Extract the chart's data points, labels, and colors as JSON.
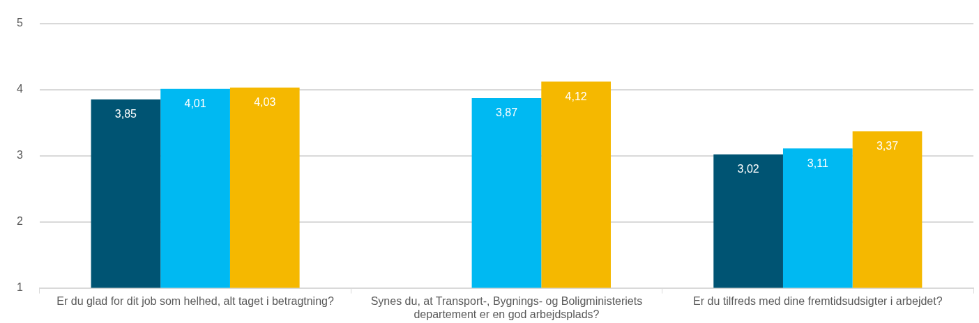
{
  "chart_data": {
    "type": "bar",
    "categories": [
      "Er du glad for dit job som helhed, alt taget i betragtning?",
      "Synes du, at Transport-, Bygnings- og Boligministeriets departement er en god arbejdsplads?",
      "Er du tilfreds med dine fremtidsudsigter i arbejdet?"
    ],
    "series": [
      {
        "color": "#005473",
        "values": [
          3.85,
          null,
          3.02
        ],
        "value_labels": [
          "3,85",
          null,
          "3,02"
        ]
      },
      {
        "color": "#00b9f2",
        "values": [
          4.01,
          3.87,
          3.11
        ],
        "value_labels": [
          "4,01",
          "3,87",
          "3,11"
        ]
      },
      {
        "color": "#f5b800",
        "values": [
          4.03,
          4.12,
          3.37
        ],
        "value_labels": [
          "4,03",
          "4,12",
          "3,37"
        ]
      }
    ],
    "ylim": [
      1,
      5
    ],
    "yticks": [
      1,
      2,
      3,
      4,
      5
    ],
    "grid": "y",
    "legend": false
  }
}
